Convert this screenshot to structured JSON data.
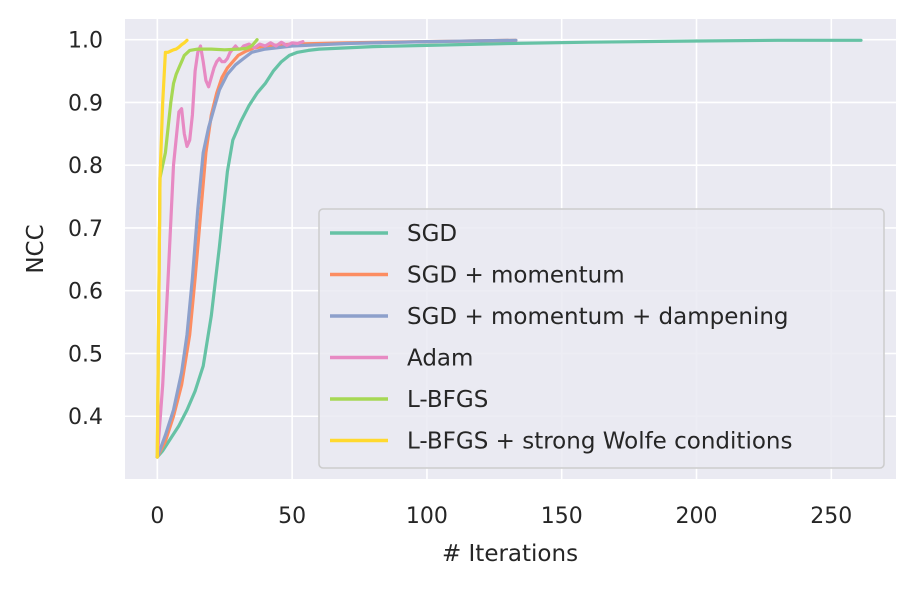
{
  "chart_data": {
    "type": "line",
    "xlabel": "# Iterations",
    "ylabel": "NCC",
    "xlim": [
      -12,
      274
    ],
    "ylim": [
      0.3,
      1.033
    ],
    "xticks": [
      0,
      50,
      100,
      150,
      200,
      250
    ],
    "xtick_labels": [
      "0",
      "50",
      "100",
      "150",
      "200",
      "250"
    ],
    "yticks": [
      0.4,
      0.5,
      0.6,
      0.7,
      0.8,
      0.9,
      1.0
    ],
    "ytick_labels": [
      "0.4",
      "0.5",
      "0.6",
      "0.7",
      "0.8",
      "0.9",
      "1.0"
    ],
    "grid": true,
    "legend_position": "lower-right",
    "series": [
      {
        "name": "SGD",
        "color": "#66c2a5",
        "x": [
          0,
          2,
          5,
          8,
          11,
          14,
          17,
          20,
          23,
          26,
          28,
          31,
          34,
          37,
          40,
          43,
          46,
          49,
          52,
          56,
          60,
          70,
          80,
          100,
          130,
          160,
          200,
          230,
          261
        ],
        "y": [
          0.335,
          0.345,
          0.365,
          0.385,
          0.41,
          0.44,
          0.48,
          0.56,
          0.67,
          0.79,
          0.84,
          0.87,
          0.895,
          0.915,
          0.93,
          0.95,
          0.965,
          0.975,
          0.98,
          0.983,
          0.985,
          0.987,
          0.989,
          0.991,
          0.994,
          0.996,
          0.998,
          0.999,
          0.999
        ]
      },
      {
        "name": "SGD + momentum",
        "color": "#fc8d62",
        "x": [
          0,
          3,
          6,
          9,
          12,
          14,
          16,
          18,
          20,
          22,
          24,
          26,
          28,
          30,
          33,
          36,
          40,
          50,
          70,
          100,
          133
        ],
        "y": [
          0.335,
          0.36,
          0.4,
          0.45,
          0.53,
          0.62,
          0.72,
          0.82,
          0.88,
          0.915,
          0.94,
          0.955,
          0.965,
          0.975,
          0.982,
          0.987,
          0.99,
          0.993,
          0.995,
          0.997,
          0.999
        ]
      },
      {
        "name": "SGD + momentum + dampening",
        "color": "#8da0cb",
        "x": [
          0,
          3,
          6,
          9,
          11,
          13,
          15,
          17,
          19,
          21,
          23,
          26,
          29,
          32,
          35,
          40,
          50,
          70,
          100,
          133
        ],
        "y": [
          0.335,
          0.37,
          0.41,
          0.47,
          0.53,
          0.62,
          0.73,
          0.82,
          0.86,
          0.89,
          0.92,
          0.945,
          0.96,
          0.97,
          0.98,
          0.985,
          0.99,
          0.994,
          0.997,
          0.999
        ]
      },
      {
        "name": "Adam",
        "color": "#e78ac3",
        "x": [
          0,
          2,
          4,
          6,
          8,
          9,
          10,
          11,
          12,
          13,
          14,
          15,
          16,
          17,
          18,
          19,
          20,
          21,
          22,
          23,
          24,
          25,
          26,
          27,
          28,
          29,
          30,
          31,
          32,
          34,
          36,
          38,
          40,
          42,
          44,
          46,
          48,
          50,
          52,
          54
        ],
        "y": [
          0.335,
          0.45,
          0.62,
          0.8,
          0.885,
          0.89,
          0.85,
          0.83,
          0.84,
          0.88,
          0.95,
          0.98,
          0.99,
          0.965,
          0.935,
          0.925,
          0.94,
          0.955,
          0.965,
          0.97,
          0.965,
          0.965,
          0.97,
          0.98,
          0.985,
          0.99,
          0.985,
          0.985,
          0.99,
          0.993,
          0.987,
          0.993,
          0.99,
          0.995,
          0.99,
          0.996,
          0.991,
          0.995,
          0.994,
          0.997
        ]
      },
      {
        "name": "L-BFGS",
        "color": "#a6d854",
        "x": [
          0,
          1,
          2,
          3,
          4,
          5,
          6,
          7,
          8,
          9,
          10,
          12,
          15,
          20,
          25,
          30,
          33,
          35,
          37
        ],
        "y": [
          0.335,
          0.78,
          0.8,
          0.82,
          0.86,
          0.9,
          0.93,
          0.945,
          0.955,
          0.965,
          0.975,
          0.983,
          0.985,
          0.985,
          0.984,
          0.985,
          0.986,
          0.99,
          1.0
        ]
      },
      {
        "name": "L-BFGS + strong Wolfe conditions",
        "color": "#ffd92f",
        "x": [
          0,
          1,
          2,
          3,
          4,
          5,
          6,
          7,
          8,
          9,
          10,
          11
        ],
        "y": [
          0.335,
          0.78,
          0.9,
          0.98,
          0.98,
          0.982,
          0.984,
          0.985,
          0.988,
          0.992,
          0.995,
          0.999
        ]
      }
    ]
  }
}
